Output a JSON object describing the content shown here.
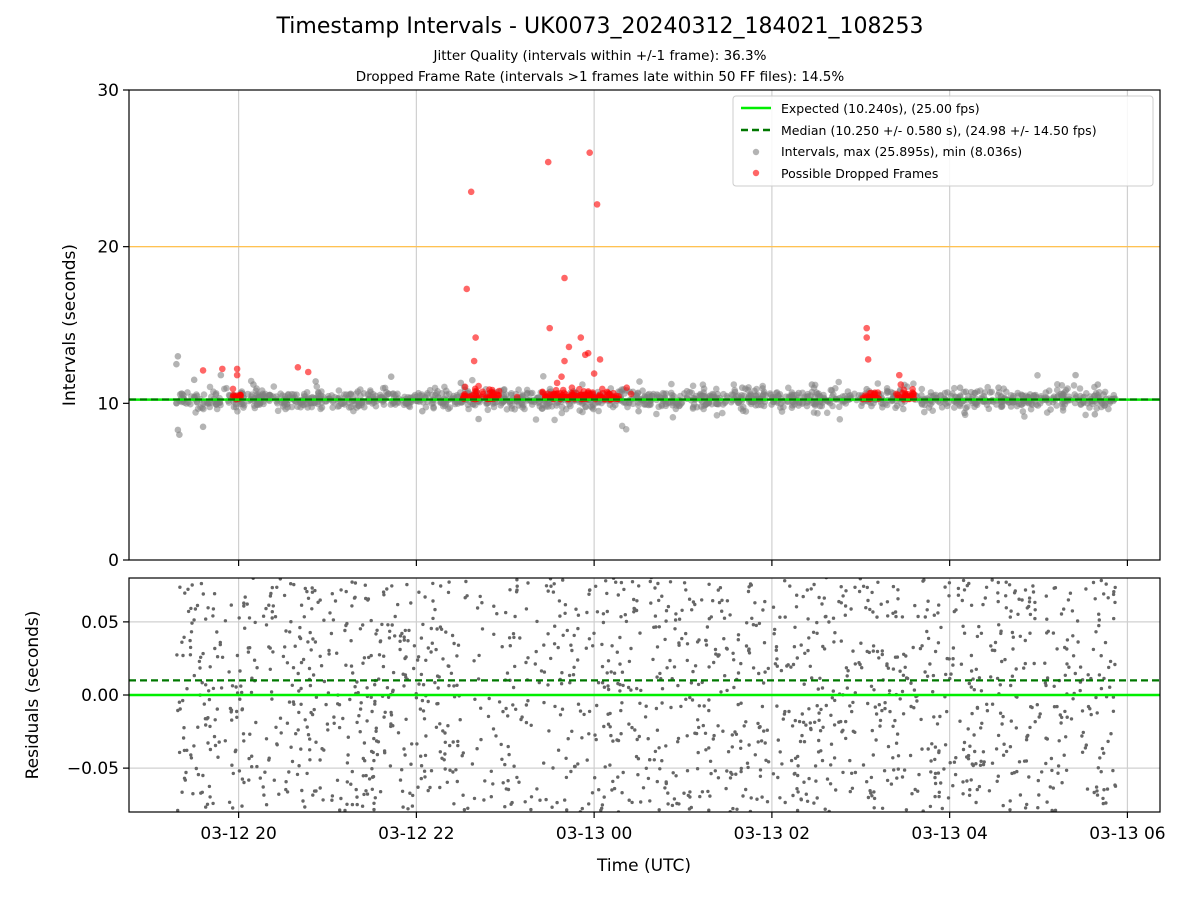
{
  "header": {
    "title": "Timestamp Intervals - UK0073_20240312_184021_108253",
    "subtitle_jitter": "Jitter Quality (intervals within +/-1 frame): 36.3%",
    "subtitle_dropped": "Dropped Frame Rate (intervals >1 frames late within 50 FF files): 14.5%"
  },
  "colors": {
    "expected": "#00ee00",
    "median": "#007700",
    "intervals": "#808080",
    "dropped": "#ff0000",
    "threshold": "#ffc04d",
    "grid": "#d0d0d0"
  },
  "chart_data": [
    {
      "type": "scatter",
      "ylabel": "Intervals (seconds)",
      "ylim": [
        0,
        30
      ],
      "yticks": [
        "0",
        "10",
        "20",
        "30"
      ],
      "xlim": [
        "03-12 18:46",
        "03-13 06:22"
      ],
      "x_ticks": [
        "03-12 20:00",
        "03-12 22:00",
        "03-13 00:00",
        "03-13 02:00",
        "03-13 04:00",
        "03-13 06:00"
      ],
      "grid": true,
      "legend_position": "top-right",
      "legend": {
        "expected": "Expected (10.240s), (25.00 fps)",
        "median": "Median (10.250 +/- 0.580 s), (24.98 +/- 14.50 fps)",
        "intervals": "Intervals, max (25.895s), min (8.036s)",
        "dropped": "Possible Dropped Frames"
      },
      "expected_interval": 10.24,
      "median_interval": 10.25,
      "threshold_line": 20,
      "data_time_range": [
        "03-12 19:18",
        "03-13 05:52"
      ],
      "intervals_band": {
        "center": 10.25,
        "typical_spread": 0.3
      },
      "interval_outliers": [
        {
          "x": "03-12 19:19",
          "y": 13.0
        },
        {
          "x": "03-12 19:18",
          "y": 12.5
        },
        {
          "x": "03-12 19:20",
          "y": 8.0
        },
        {
          "x": "03-12 19:19",
          "y": 8.3
        },
        {
          "x": "03-12 19:30",
          "y": 11.5
        },
        {
          "x": "03-12 19:36",
          "y": 8.5
        },
        {
          "x": "03-12 19:48",
          "y": 11.8
        },
        {
          "x": "03-12 20:10",
          "y": 11.2
        },
        {
          "x": "03-12 20:52",
          "y": 11.4
        },
        {
          "x": "03-12 21:43",
          "y": 11.7
        },
        {
          "x": "03-12 22:04",
          "y": 9.5
        },
        {
          "x": "03-12 22:30",
          "y": 11.3
        },
        {
          "x": "03-12 22:42",
          "y": 9.0
        },
        {
          "x": "03-13 00:30",
          "y": 9.5
        },
        {
          "x": "03-13 01:40",
          "y": 11.0
        },
        {
          "x": "03-13 02:27",
          "y": 11.2
        },
        {
          "x": "03-13 03:04",
          "y": 10.9
        },
        {
          "x": "03-13 04:07",
          "y": 11.0
        },
        {
          "x": "03-13 04:10",
          "y": 9.4
        },
        {
          "x": "03-13 04:33",
          "y": 11.0
        },
        {
          "x": "03-13 05:25",
          "y": 11.8
        },
        {
          "x": "03-13 05:38",
          "y": 9.3
        },
        {
          "x": "03-13 05:40",
          "y": 11.2
        }
      ],
      "dropped_frames": [
        {
          "x": "03-12 19:36",
          "y": 12.1
        },
        {
          "x": "03-12 19:49",
          "y": 12.2
        },
        {
          "x": "03-12 19:59",
          "y": 12.2
        },
        {
          "x": "03-12 20:40",
          "y": 12.3
        },
        {
          "x": "03-12 20:47",
          "y": 12.0
        },
        {
          "x": "03-12 19:59",
          "y": 11.8
        },
        {
          "x": "03-12 19:58",
          "y": 10.4
        },
        {
          "x": "03-12 20:00",
          "y": 10.3
        },
        {
          "x": "03-12 20:01",
          "y": 10.5
        },
        {
          "x": "03-12 22:34",
          "y": 17.3
        },
        {
          "x": "03-12 22:37",
          "y": 23.5
        },
        {
          "x": "03-12 22:39",
          "y": 12.7
        },
        {
          "x": "03-12 22:40",
          "y": 14.2
        },
        {
          "x": "03-12 22:42",
          "y": 11.1
        },
        {
          "x": "03-12 22:32",
          "y": 10.5
        },
        {
          "x": "03-12 22:36",
          "y": 10.4
        },
        {
          "x": "03-12 22:45",
          "y": 10.6
        },
        {
          "x": "03-12 22:50",
          "y": 10.3
        },
        {
          "x": "03-12 22:55",
          "y": 10.5
        },
        {
          "x": "03-12 23:08",
          "y": 10.4
        },
        {
          "x": "03-12 23:29",
          "y": 25.4
        },
        {
          "x": "03-12 23:30",
          "y": 14.8
        },
        {
          "x": "03-12 23:40",
          "y": 18.0
        },
        {
          "x": "03-12 23:40",
          "y": 12.7
        },
        {
          "x": "03-12 23:43",
          "y": 13.6
        },
        {
          "x": "03-12 23:38",
          "y": 11.7
        },
        {
          "x": "03-12 23:35",
          "y": 11.3
        },
        {
          "x": "03-12 23:51",
          "y": 14.2
        },
        {
          "x": "03-12 23:54",
          "y": 13.1
        },
        {
          "x": "03-12 23:56",
          "y": 13.2
        },
        {
          "x": "03-12 23:57",
          "y": 26.0
        },
        {
          "x": "03-13 00:02",
          "y": 22.7
        },
        {
          "x": "03-13 00:04",
          "y": 12.8
        },
        {
          "x": "03-13 00:00",
          "y": 11.9
        },
        {
          "x": "03-12 23:45",
          "y": 11.0
        },
        {
          "x": "03-12 23:50",
          "y": 10.9
        },
        {
          "x": "03-12 23:27",
          "y": 10.4
        },
        {
          "x": "03-12 23:33",
          "y": 10.6
        },
        {
          "x": "03-12 23:47",
          "y": 10.5
        },
        {
          "x": "03-13 00:05",
          "y": 10.4
        },
        {
          "x": "03-13 00:10",
          "y": 10.6
        },
        {
          "x": "03-13 00:15",
          "y": 10.3
        },
        {
          "x": "03-13 00:22",
          "y": 11.0
        },
        {
          "x": "03-13 00:25",
          "y": 10.6
        },
        {
          "x": "03-13 03:04",
          "y": 14.8
        },
        {
          "x": "03-13 03:04",
          "y": 14.2
        },
        {
          "x": "03-13 03:05",
          "y": 12.8
        },
        {
          "x": "03-13 03:03",
          "y": 10.5
        },
        {
          "x": "03-13 03:08",
          "y": 10.4
        },
        {
          "x": "03-13 03:12",
          "y": 10.3
        },
        {
          "x": "03-13 03:26",
          "y": 11.8
        },
        {
          "x": "03-13 03:27",
          "y": 11.2
        },
        {
          "x": "03-13 03:24",
          "y": 10.6
        },
        {
          "x": "03-13 03:30",
          "y": 10.4
        },
        {
          "x": "03-13 03:35",
          "y": 10.9
        },
        {
          "x": "03-13 03:36",
          "y": 10.3
        }
      ]
    },
    {
      "type": "scatter",
      "xlabel": "Time (UTC)",
      "ylabel": "Residuals (seconds)",
      "ylim": [
        -0.08,
        0.08
      ],
      "yticks": [
        "−0.05",
        "0.00",
        "0.05"
      ],
      "x_tick_labels": [
        "03-12 20",
        "03-12 22",
        "03-13 00",
        "03-13 02",
        "03-13 04",
        "03-13 06"
      ],
      "grid": true,
      "expected_residual": 0.0,
      "median_residual": 0.01,
      "residual_spread": [
        -0.08,
        0.08
      ],
      "data_time_range": [
        "03-12 19:18",
        "03-13 05:52"
      ]
    }
  ]
}
